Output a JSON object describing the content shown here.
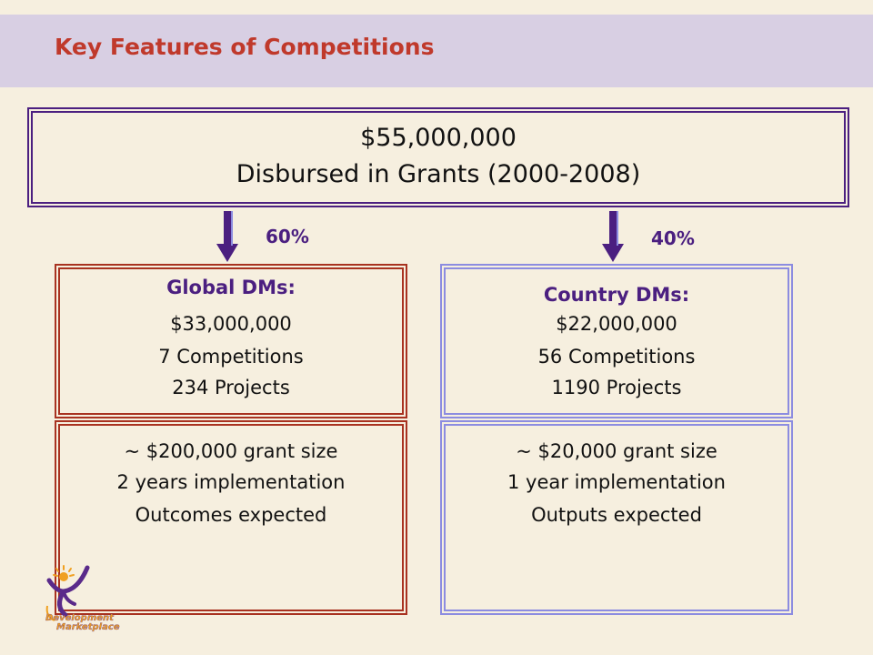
{
  "title": "Key Features of Competitions",
  "top": {
    "amount": "$55,000,000",
    "caption": "Disbursed in Grants (2000-2008)"
  },
  "global": {
    "percent": "60%",
    "heading": "Global DMs:",
    "amount": "$33,000,000",
    "competitions": "7 Competitions",
    "projects": "234 Projects",
    "grant_size": "~ $200,000 grant size",
    "implementation": "2 years implementation",
    "expected": "Outcomes expected"
  },
  "country": {
    "percent": "40%",
    "heading": "Country DMs:",
    "amount": "$22,000,000",
    "competitions": "56 Competitions",
    "projects": "1190 Projects",
    "grant_size": "~ $20,000 grant size",
    "implementation": "1 year implementation",
    "expected": "Outputs expected"
  },
  "logo": {
    "line1": "Development",
    "line2": "Marketplace"
  },
  "colors": {
    "title": "#c0392b",
    "header_band": "#d8cfe3",
    "purple": "#4b1f80",
    "red_border": "#a83220",
    "lavender_border": "#8c8ce0",
    "logo_orange": "#f0a020"
  }
}
